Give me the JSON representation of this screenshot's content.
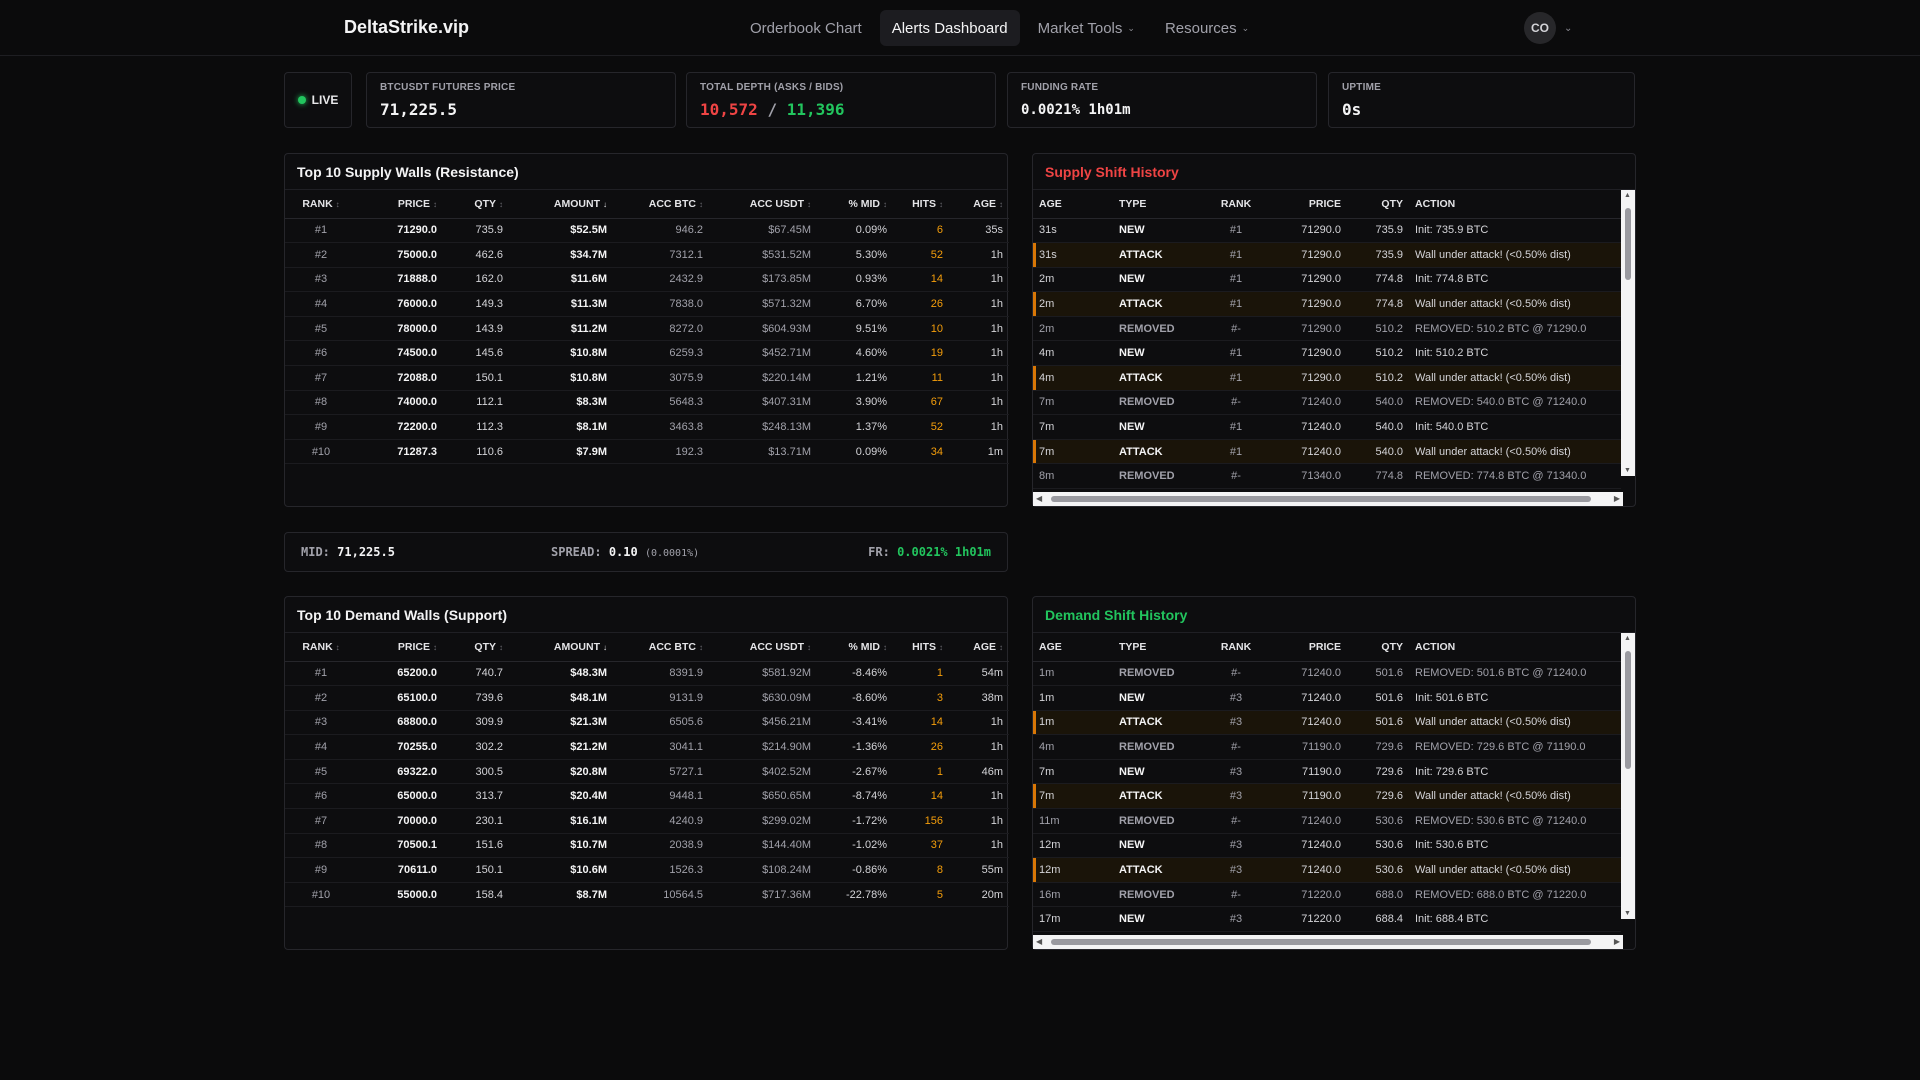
{
  "nav": {
    "brand": "DeltaStrike.vip",
    "links": [
      "Orderbook Chart",
      "Alerts Dashboard",
      "Market Tools",
      "Resources"
    ],
    "avatar": "CO"
  },
  "status": {
    "live": "LIVE"
  },
  "cards": {
    "price": {
      "label": "BTCUSDT FUTURES PRICE",
      "value": "71,225.5"
    },
    "depth": {
      "label": "TOTAL DEPTH (ASKS / BIDS)",
      "asks": "10,572",
      "sep": "/",
      "bids": "11,396"
    },
    "funding": {
      "label": "FUNDING RATE",
      "value": "0.0021% 1h01m"
    },
    "uptime": {
      "label": "UPTIME",
      "value": "0s"
    }
  },
  "wall_columns": [
    "RANK",
    "PRICE",
    "QTY",
    "AMOUNT",
    "ACC BTC",
    "ACC USDT",
    "% MID",
    "HITS",
    "AGE"
  ],
  "supply": {
    "title": "Top 10 Supply Walls (Resistance)",
    "rows": [
      [
        "#1",
        "71290.0",
        "735.9",
        "$52.5M",
        "946.2",
        "$67.45M",
        "0.09%",
        "6",
        "35s"
      ],
      [
        "#2",
        "75000.0",
        "462.6",
        "$34.7M",
        "7312.1",
        "$531.52M",
        "5.30%",
        "52",
        "1h"
      ],
      [
        "#3",
        "71888.0",
        "162.0",
        "$11.6M",
        "2432.9",
        "$173.85M",
        "0.93%",
        "14",
        "1h"
      ],
      [
        "#4",
        "76000.0",
        "149.3",
        "$11.3M",
        "7838.0",
        "$571.32M",
        "6.70%",
        "26",
        "1h"
      ],
      [
        "#5",
        "78000.0",
        "143.9",
        "$11.2M",
        "8272.0",
        "$604.93M",
        "9.51%",
        "10",
        "1h"
      ],
      [
        "#6",
        "74500.0",
        "145.6",
        "$10.8M",
        "6259.3",
        "$452.71M",
        "4.60%",
        "19",
        "1h"
      ],
      [
        "#7",
        "72088.0",
        "150.1",
        "$10.8M",
        "3075.9",
        "$220.14M",
        "1.21%",
        "11",
        "1h"
      ],
      [
        "#8",
        "74000.0",
        "112.1",
        "$8.3M",
        "5648.3",
        "$407.31M",
        "3.90%",
        "67",
        "1h"
      ],
      [
        "#9",
        "72200.0",
        "112.3",
        "$8.1M",
        "3463.8",
        "$248.13M",
        "1.37%",
        "52",
        "1h"
      ],
      [
        "#10",
        "71287.3",
        "110.6",
        "$7.9M",
        "192.3",
        "$13.71M",
        "0.09%",
        "34",
        "1m"
      ]
    ]
  },
  "demand": {
    "title": "Top 10 Demand Walls (Support)",
    "rows": [
      [
        "#1",
        "65200.0",
        "740.7",
        "$48.3M",
        "8391.9",
        "$581.92M",
        "-8.46%",
        "1",
        "54m"
      ],
      [
        "#2",
        "65100.0",
        "739.6",
        "$48.1M",
        "9131.9",
        "$630.09M",
        "-8.60%",
        "3",
        "38m"
      ],
      [
        "#3",
        "68800.0",
        "309.9",
        "$21.3M",
        "6505.6",
        "$456.21M",
        "-3.41%",
        "14",
        "1h"
      ],
      [
        "#4",
        "70255.0",
        "302.2",
        "$21.2M",
        "3041.1",
        "$214.90M",
        "-1.36%",
        "26",
        "1h"
      ],
      [
        "#5",
        "69322.0",
        "300.5",
        "$20.8M",
        "5727.1",
        "$402.52M",
        "-2.67%",
        "1",
        "46m"
      ],
      [
        "#6",
        "65000.0",
        "313.7",
        "$20.4M",
        "9448.1",
        "$650.65M",
        "-8.74%",
        "14",
        "1h"
      ],
      [
        "#7",
        "70000.0",
        "230.1",
        "$16.1M",
        "4240.9",
        "$299.02M",
        "-1.72%",
        "156",
        "1h"
      ],
      [
        "#8",
        "70500.1",
        "151.6",
        "$10.7M",
        "2038.9",
        "$144.40M",
        "-1.02%",
        "37",
        "1h"
      ],
      [
        "#9",
        "70611.0",
        "150.1",
        "$10.6M",
        "1526.3",
        "$108.24M",
        "-0.86%",
        "8",
        "55m"
      ],
      [
        "#10",
        "55000.0",
        "158.4",
        "$8.7M",
        "10564.5",
        "$717.36M",
        "-22.78%",
        "5",
        "20m"
      ]
    ]
  },
  "midbar": {
    "mid_label": "MID:",
    "mid_value": "71,225.5",
    "spread_label": "SPREAD:",
    "spread_value": "0.10",
    "spread_pct": "(0.0001%)",
    "fr_label": "FR:",
    "fr_value": "0.0021% 1h01m"
  },
  "hist_columns": [
    "AGE",
    "TYPE",
    "RANK",
    "PRICE",
    "QTY",
    "ACTION"
  ],
  "supply_history": {
    "title": "Supply Shift History",
    "rows": [
      [
        "31s",
        "NEW",
        "#1",
        "71290.0",
        "735.9",
        "Init: 735.9 BTC"
      ],
      [
        "31s",
        "ATTACK",
        "#1",
        "71290.0",
        "735.9",
        "Wall under attack! (<0.50% dist)"
      ],
      [
        "2m",
        "NEW",
        "#1",
        "71290.0",
        "774.8",
        "Init: 774.8 BTC"
      ],
      [
        "2m",
        "ATTACK",
        "#1",
        "71290.0",
        "774.8",
        "Wall under attack! (<0.50% dist)"
      ],
      [
        "2m",
        "REMOVED",
        "#-",
        "71290.0",
        "510.2",
        "REMOVED: 510.2 BTC @ 71290.0"
      ],
      [
        "4m",
        "NEW",
        "#1",
        "71290.0",
        "510.2",
        "Init: 510.2 BTC"
      ],
      [
        "4m",
        "ATTACK",
        "#1",
        "71290.0",
        "510.2",
        "Wall under attack! (<0.50% dist)"
      ],
      [
        "7m",
        "REMOVED",
        "#-",
        "71240.0",
        "540.0",
        "REMOVED: 540.0 BTC @ 71240.0"
      ],
      [
        "7m",
        "NEW",
        "#1",
        "71240.0",
        "540.0",
        "Init: 540.0 BTC"
      ],
      [
        "7m",
        "ATTACK",
        "#1",
        "71240.0",
        "540.0",
        "Wall under attack! (<0.50% dist)"
      ],
      [
        "8m",
        "REMOVED",
        "#-",
        "71340.0",
        "774.8",
        "REMOVED: 774.8 BTC @ 71340.0"
      ]
    ]
  },
  "demand_history": {
    "title": "Demand Shift History",
    "rows": [
      [
        "1m",
        "REMOVED",
        "#-",
        "71240.0",
        "501.6",
        "REMOVED: 501.6 BTC @ 71240.0"
      ],
      [
        "1m",
        "NEW",
        "#3",
        "71240.0",
        "501.6",
        "Init: 501.6 BTC"
      ],
      [
        "1m",
        "ATTACK",
        "#3",
        "71240.0",
        "501.6",
        "Wall under attack! (<0.50% dist)"
      ],
      [
        "4m",
        "REMOVED",
        "#-",
        "71190.0",
        "729.6",
        "REMOVED: 729.6 BTC @ 71190.0"
      ],
      [
        "7m",
        "NEW",
        "#3",
        "71190.0",
        "729.6",
        "Init: 729.6 BTC"
      ],
      [
        "7m",
        "ATTACK",
        "#3",
        "71190.0",
        "729.6",
        "Wall under attack! (<0.50% dist)"
      ],
      [
        "11m",
        "REMOVED",
        "#-",
        "71240.0",
        "530.6",
        "REMOVED: 530.6 BTC @ 71240.0"
      ],
      [
        "12m",
        "NEW",
        "#3",
        "71240.0",
        "530.6",
        "Init: 530.6 BTC"
      ],
      [
        "12m",
        "ATTACK",
        "#3",
        "71240.0",
        "530.6",
        "Wall under attack! (<0.50% dist)"
      ],
      [
        "16m",
        "REMOVED",
        "#-",
        "71220.0",
        "688.0",
        "REMOVED: 688.0 BTC @ 71220.0"
      ],
      [
        "17m",
        "NEW",
        "#3",
        "71220.0",
        "688.4",
        "Init: 688.4 BTC"
      ]
    ]
  },
  "colors": {
    "asks": "#ef4444",
    "bids": "#22c55e",
    "accent_supply": "#ef4444",
    "accent_demand": "#22c55e",
    "hits": "#f59e0b"
  },
  "icons": {
    "chevron": "chevron-down-icon",
    "live": "live-dot-icon"
  }
}
